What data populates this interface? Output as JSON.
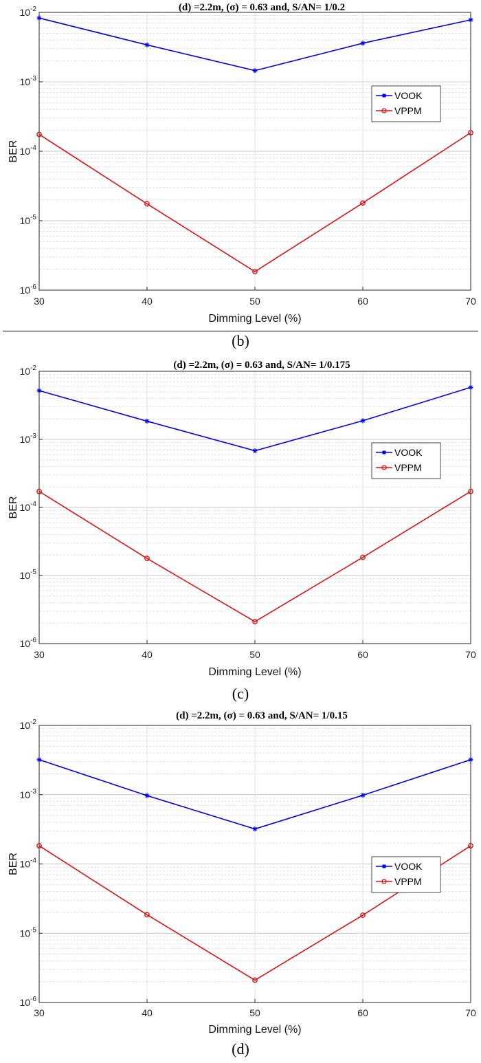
{
  "captions": [
    "(b)",
    "(c)",
    "(d)"
  ],
  "chart_data": [
    {
      "type": "line",
      "title": "(d) =2.2m, (σ)  = 0.63 and, S/AN= 1/0.2",
      "xlabel": "Dimming Level (%)",
      "ylabel": "BER",
      "yscale": "log",
      "x": [
        30,
        40,
        50,
        60,
        70
      ],
      "xlim": [
        30,
        70
      ],
      "ylim": [
        1e-06,
        0.01
      ],
      "xticks": [
        "30",
        "40",
        "50",
        "60",
        "70"
      ],
      "grid": true,
      "legend_position": "right",
      "series": [
        {
          "name": "VOOK",
          "color": "#0000ee",
          "marker": "star",
          "values": [
            0.0083,
            0.0034,
            0.00145,
            0.0036,
            0.0078
          ]
        },
        {
          "name": "VPPM",
          "color": "#dd1111",
          "marker": "circle",
          "values": [
            0.000175,
            1.75e-05,
            1.85e-06,
            1.8e-05,
            0.000185
          ]
        }
      ]
    },
    {
      "type": "line",
      "title": "(d) =2.2m, (σ)  = 0.63 and, S/AN= 1/0.175",
      "xlabel": "Dimming Level (%)",
      "ylabel": "BER",
      "yscale": "log",
      "x": [
        30,
        40,
        50,
        60,
        70
      ],
      "xlim": [
        30,
        70
      ],
      "ylim": [
        1e-06,
        0.01
      ],
      "xticks": [
        "30",
        "40",
        "50",
        "60",
        "70"
      ],
      "grid": true,
      "legend_position": "right",
      "series": [
        {
          "name": "VOOK",
          "color": "#0000ee",
          "marker": "star",
          "values": [
            0.0052,
            0.00185,
            0.00068,
            0.00188,
            0.0058
          ]
        },
        {
          "name": "VPPM",
          "color": "#dd1111",
          "marker": "circle",
          "values": [
            0.000172,
            1.78e-05,
            2.1e-06,
            1.85e-05,
            0.000172
          ]
        }
      ]
    },
    {
      "type": "line",
      "title": "(d) =2.2m, (σ)  = 0.63 and, S/AN= 1/0.15",
      "xlabel": "Dimming Level (%)",
      "ylabel": "BER",
      "yscale": "log",
      "x": [
        30,
        40,
        50,
        60,
        70
      ],
      "xlim": [
        30,
        70
      ],
      "ylim": [
        1e-06,
        0.01
      ],
      "xticks": [
        "30",
        "40",
        "50",
        "60",
        "70"
      ],
      "grid": true,
      "legend_position": "right",
      "series": [
        {
          "name": "VOOK",
          "color": "#0000ee",
          "marker": "star",
          "values": [
            0.0032,
            0.00097,
            0.00032,
            0.00098,
            0.0032
          ]
        },
        {
          "name": "VPPM",
          "color": "#dd1111",
          "marker": "circle",
          "values": [
            0.000183,
            1.85e-05,
            2.1e-06,
            1.82e-05,
            0.000183
          ]
        }
      ]
    }
  ]
}
